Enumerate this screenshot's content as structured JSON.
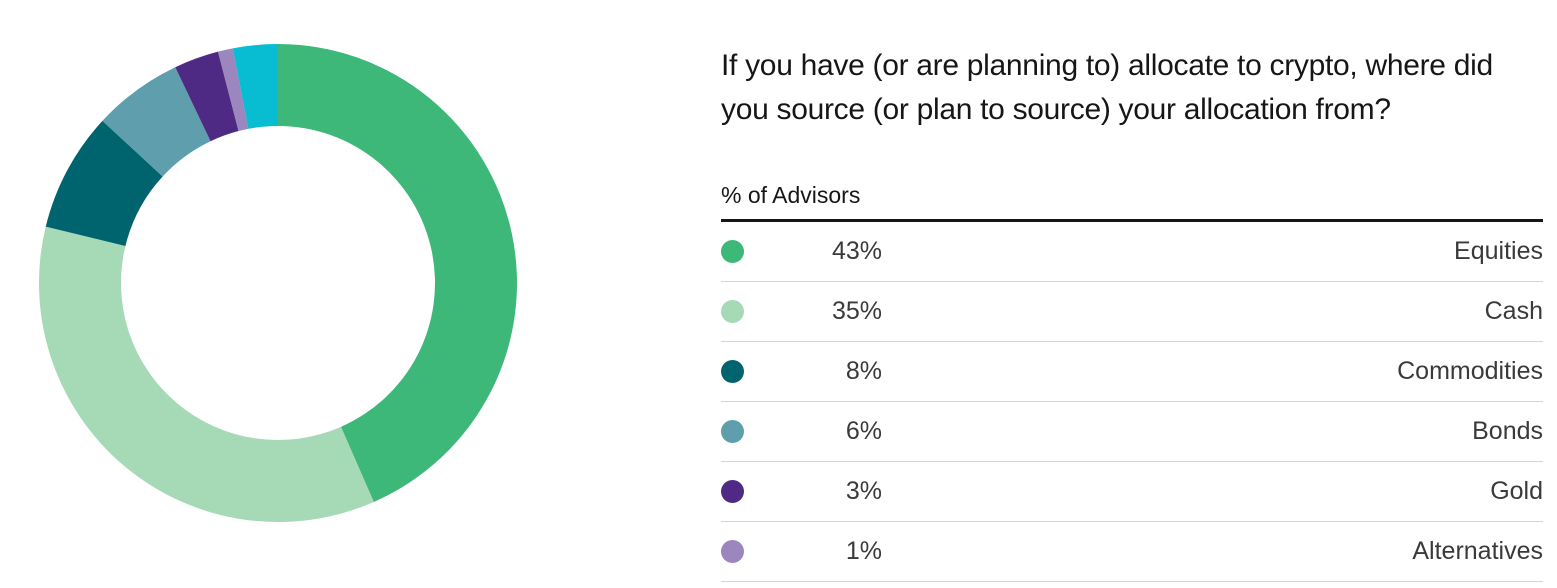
{
  "chart_data": {
    "type": "pie",
    "variant": "donut",
    "title": "If you have (or are planning to) allocate to crypto, where did you source (or plan to source) your allocation from?",
    "legend_header": "% of Advisors",
    "legend_placement": "right",
    "unit": "%",
    "slices": [
      {
        "label": "Equities",
        "value": 43,
        "display": "43%",
        "color": "#3db878"
      },
      {
        "label": "Cash",
        "value": 35,
        "display": "35%",
        "color": "#a6d9b5"
      },
      {
        "label": "Commodities",
        "value": 8,
        "display": "8%",
        "color": "#00646f"
      },
      {
        "label": "Bonds",
        "value": 6,
        "display": "6%",
        "color": "#5f9eac"
      },
      {
        "label": "Gold",
        "value": 3,
        "display": "3%",
        "color": "#4e2a84"
      },
      {
        "label": "Alternatives",
        "value": 1,
        "display": "1%",
        "color": "#9b86be"
      },
      {
        "label": "",
        "value": 3,
        "display": "",
        "color": "#08bcd1"
      }
    ]
  }
}
